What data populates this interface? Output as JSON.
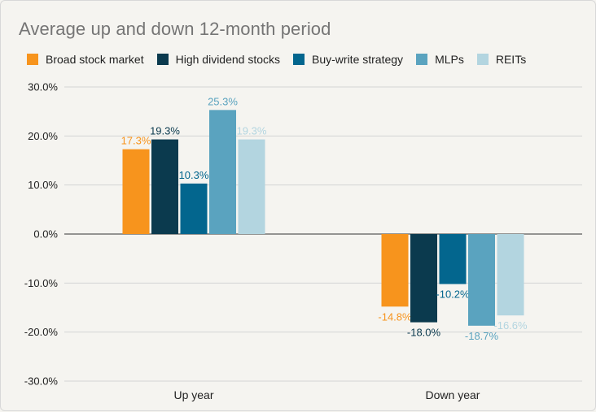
{
  "chart_data": {
    "type": "bar",
    "title": "Average up and down 12-month period",
    "categories": [
      "Up year",
      "Down year"
    ],
    "series": [
      {
        "name": "Broad stock market",
        "color": "#f7941d",
        "values": [
          17.3,
          -14.8
        ],
        "labels": [
          "17.3%",
          "-14.8%"
        ]
      },
      {
        "name": "High dividend stocks",
        "color": "#0b3a4e",
        "values": [
          19.3,
          -18.0
        ],
        "labels": [
          "19.3%",
          "-18.0%"
        ]
      },
      {
        "name": "Buy-write strategy",
        "color": "#03668e",
        "values": [
          10.3,
          -10.2
        ],
        "labels": [
          "10.3%",
          "-10.2%"
        ]
      },
      {
        "name": "MLPs",
        "color": "#5aa3bf",
        "values": [
          25.3,
          -18.7
        ],
        "labels": [
          "25.3%",
          "-18.7%"
        ]
      },
      {
        "name": "REITs",
        "color": "#b3d5e0",
        "values": [
          19.3,
          -16.6
        ],
        "labels": [
          "19.3%",
          "-16.6%"
        ]
      }
    ],
    "y_ticks": [
      "30.0%",
      "20.0%",
      "10.0%",
      "0.0%",
      "-10.0%",
      "-20.0%",
      "-30.0%"
    ],
    "ylim": [
      -30,
      30
    ],
    "grid": true,
    "legend_position": "top"
  }
}
